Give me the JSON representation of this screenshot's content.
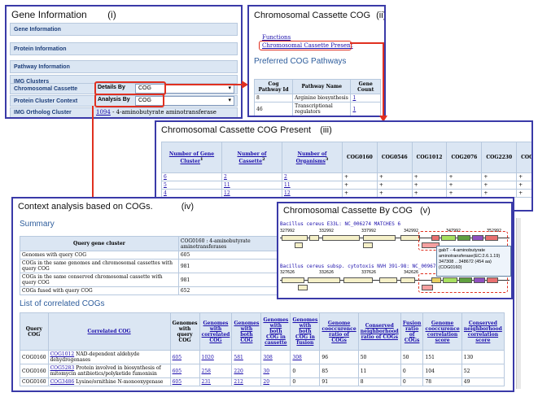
{
  "panel_i": {
    "title": "Gene Information",
    "tag": "(i)",
    "rows": [
      {
        "label": "Gene Information"
      },
      {
        "label": "Protein Information"
      },
      {
        "label": "Pathway Information"
      },
      {
        "label": "IMG Clusters"
      }
    ],
    "chromosomal_cassette": {
      "label": "Chromosomal Cassette",
      "by_label": "Details By",
      "value": "COG"
    },
    "protein_cluster_context": {
      "label": "Protein Cluster Context",
      "by_label": "Analysis By",
      "value": "COG"
    },
    "img_ortholog_cluster": {
      "label": "IMG Ortholog Cluster",
      "id": "1094",
      "text": "- 4-aminobutyrate aminotransferase"
    }
  },
  "panel_ii": {
    "title": "Chromosomal Cassette COG",
    "tag": "(ii)",
    "links": [
      "Functions",
      "Chromosomal Cassette Present"
    ],
    "section": "Preferred COG Pathways",
    "headers": [
      "Cog Pathway Id",
      "Pathway Name",
      "Gene Count"
    ],
    "rows": [
      {
        "id": "8",
        "name": "Arginine biosynthesis",
        "count": "1"
      },
      {
        "id": "46",
        "name": "Transcriptional regulators",
        "count": "1"
      }
    ]
  },
  "panel_iii": {
    "title": "Chromosomal Cassette COG Present",
    "tag": "(iii)",
    "headers": [
      "Number of Gene Cluster",
      "Number of Cassette",
      "Number of Organisms"
    ],
    "header_sups": [
      "1",
      "2",
      "3"
    ],
    "cog_cols": [
      "COG0160",
      "COG0546",
      "COG1012",
      "COG2076",
      "COG2230",
      "COG3829"
    ],
    "rows": [
      {
        "a": "6",
        "b": "2",
        "c": "2",
        "marks": [
          "+",
          "+",
          "+",
          "+",
          "+",
          "+"
        ]
      },
      {
        "a": "5",
        "b": "11",
        "c": "11",
        "marks": [
          "+",
          "+",
          "+",
          "+",
          "+",
          "+"
        ]
      },
      {
        "a": "4",
        "b": "12",
        "c": "12",
        "marks": [
          "+",
          "+",
          "+",
          "+",
          "+",
          "+"
        ]
      }
    ]
  },
  "panel_iv": {
    "title": "Context analysis based on COGs.",
    "tag": "(iv)",
    "summary_title": "Summary",
    "summary_header": "Query gene cluster",
    "summary_header_value": "COG0160 : 4-aminobutyrate aminotransferases",
    "summary_rows": [
      {
        "label": "Genomes with query COG",
        "value": "605"
      },
      {
        "label": "COGs in the same genomes and chromosomal cassettes with query COG",
        "value": "981"
      },
      {
        "label": "COGs in the same conserved chromosomal cassette with query COG",
        "value": "981"
      },
      {
        "label": "COGs fused with query COG",
        "value": "652"
      }
    ],
    "list_title": "List of correlated COGs",
    "list_headers": [
      "Query COG",
      "Correlated COG",
      "Genomes with query COG",
      "Genomes with correlated COG",
      "Genomes with both COG",
      "Genomes with both COG in cassette",
      "Genomes with both COG in fusion",
      "Genome cooccurence ratio of COGs",
      "Conserved neighborhood ratio of COGs",
      "Fusion ratio of COGs",
      "Genome cooccurence correlation score",
      "Conserved neighborhood correlation score"
    ],
    "list_rows": [
      {
        "q": "COG0160",
        "cog": "COG1012",
        "desc": "NAD-dependent aldehyde dehydrogenases",
        "v": [
          "605",
          "1020",
          "581",
          "308",
          "308",
          "96",
          "50",
          "50",
          "151",
          "130"
        ]
      },
      {
        "q": "COG0160",
        "cog": "COG5283",
        "desc": "Protein involved in biosynthesis of mitomycin antibiotics/polyketide fumonisin",
        "v": [
          "605",
          "258",
          "220",
          "30",
          "0",
          "85",
          "11",
          "0",
          "104",
          "52"
        ]
      },
      {
        "q": "COG0160",
        "cog": "COG3486",
        "desc": "Lysine/ornithine N-monooxygenase",
        "v": [
          "605",
          "231",
          "212",
          "20",
          "0",
          "91",
          "8",
          "0",
          "78",
          "49"
        ]
      }
    ]
  },
  "panel_v": {
    "title": "Chromosomal Cassette By COG",
    "tag": "(v)",
    "track1_label": "Bacillus cereus E33L: NC_006274 MATCHES 6",
    "track1_ticks": [
      "327992",
      "332992",
      "337992",
      "342992",
      "347992",
      "352992"
    ],
    "track2_label": "Bacillus cereus subsp. cytotoxis NVH 391-98: NC_009674 MATCHES 6",
    "track2_ticks": [
      "327626",
      "332626",
      "337626",
      "342626",
      "347626"
    ],
    "tooltip": [
      "gabT - 4-aminobutyrate",
      "aminotransferase(EC:2.6.1.19)",
      "347308 .. 348672 (454 aa)",
      "(COG0160)"
    ]
  }
}
